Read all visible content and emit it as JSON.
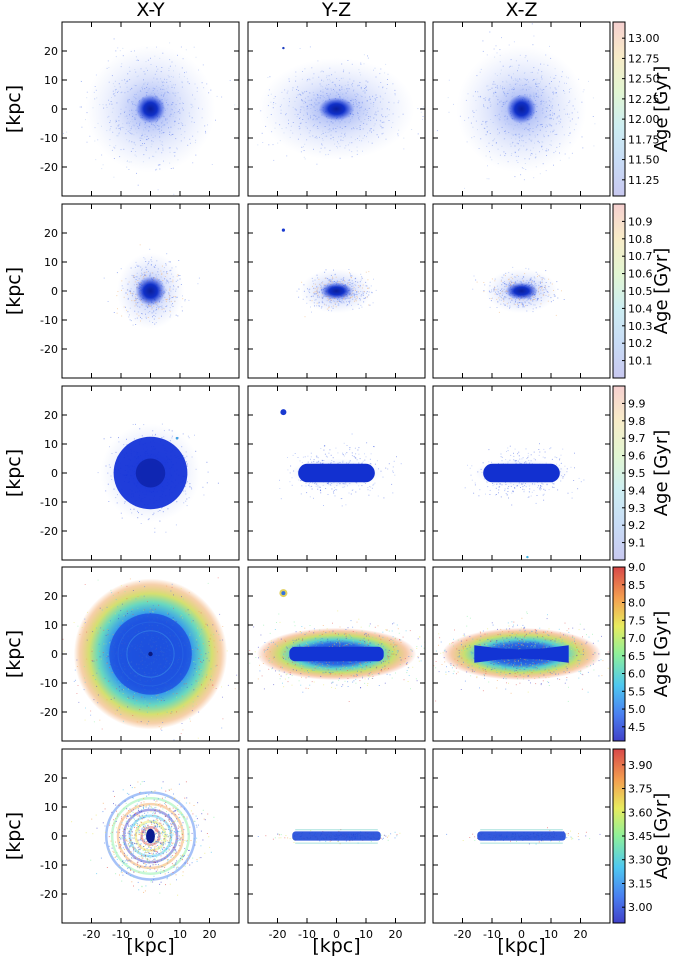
{
  "columns": [
    "X-Y",
    "Y-Z",
    "X-Z"
  ],
  "ylabel": "[kpc]",
  "xlabel": "[kpc]",
  "colorbar_label": "Age [Gyr]",
  "chart_data": {
    "type": "scatter",
    "xlim": [
      -30,
      30
    ],
    "ylim": [
      -30,
      30
    ],
    "xticks": [
      -20,
      -10,
      0,
      10,
      20
    ],
    "yticks": [
      -20,
      -10,
      0,
      10,
      20
    ],
    "grid": false,
    "colormap": "jet",
    "rows": [
      {
        "colorbar_ticks": [
          "11.25",
          "11.50",
          "11.75",
          "12.00",
          "12.25",
          "12.50",
          "12.75",
          "13.00"
        ],
        "colorbar_range": [
          11.05,
          13.2
        ]
      },
      {
        "colorbar_ticks": [
          "10.1",
          "10.2",
          "10.3",
          "10.4",
          "10.5",
          "10.6",
          "10.7",
          "10.8",
          "10.9"
        ],
        "colorbar_range": [
          10.0,
          11.0
        ]
      },
      {
        "colorbar_ticks": [
          "9.1",
          "9.2",
          "9.3",
          "9.4",
          "9.5",
          "9.6",
          "9.7",
          "9.8",
          "9.9"
        ],
        "colorbar_range": [
          9.0,
          10.0
        ]
      },
      {
        "colorbar_ticks": [
          "4.5",
          "5.0",
          "5.5",
          "6.0",
          "6.5",
          "7.0",
          "7.5",
          "8.0",
          "8.5",
          "9.0"
        ],
        "colorbar_range": [
          4.1,
          9.0
        ]
      },
      {
        "colorbar_ticks": [
          "3.00",
          "3.15",
          "3.30",
          "3.45",
          "3.60",
          "3.75",
          "3.90"
        ],
        "colorbar_range": [
          2.9,
          4.0
        ]
      }
    ]
  }
}
